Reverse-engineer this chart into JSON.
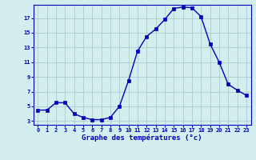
{
  "hours": [
    0,
    1,
    2,
    3,
    4,
    5,
    6,
    7,
    8,
    9,
    10,
    11,
    12,
    13,
    14,
    15,
    16,
    17,
    18,
    19,
    20,
    21,
    22,
    23
  ],
  "temps": [
    4.5,
    4.5,
    5.5,
    5.5,
    4.0,
    3.5,
    3.2,
    3.2,
    3.5,
    5.0,
    8.5,
    12.5,
    14.5,
    15.5,
    16.8,
    18.3,
    18.5,
    18.4,
    17.2,
    13.5,
    11.0,
    8.0,
    7.2,
    6.5
  ],
  "xlabel": "Graphe des températures (°c)",
  "line_color": "#0000bb",
  "marker": "s",
  "marker_size": 2.2,
  "bg_color": "#d4eef0",
  "grid_color": "#aacccc",
  "axis_label_color": "#0000bb",
  "tick_label_color": "#0000bb",
  "border_color": "#0000bb",
  "ylim": [
    2.5,
    18.8
  ],
  "yticks": [
    3,
    5,
    7,
    9,
    11,
    13,
    15,
    17
  ],
  "xlim": [
    -0.5,
    23.5
  ],
  "xticks": [
    0,
    1,
    2,
    3,
    4,
    5,
    6,
    7,
    8,
    9,
    10,
    11,
    12,
    13,
    14,
    15,
    16,
    17,
    18,
    19,
    20,
    21,
    22,
    23
  ],
  "xtick_labels": [
    "0",
    "1",
    "2",
    "3",
    "4",
    "5",
    "6",
    "7",
    "8",
    "9",
    "10",
    "11",
    "12",
    "13",
    "14",
    "15",
    "16",
    "17",
    "18",
    "19",
    "20",
    "21",
    "22",
    "23"
  ]
}
